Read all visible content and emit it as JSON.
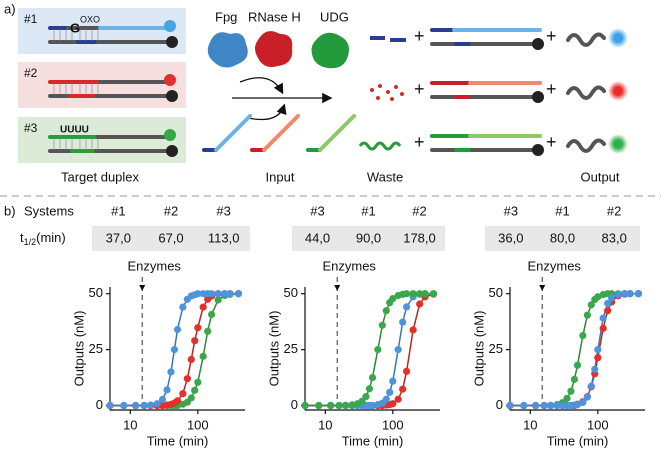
{
  "panel_a": {
    "label": "a)",
    "systems": [
      "#1",
      "#2",
      "#3"
    ],
    "lesion_base": "G",
    "lesion_tag": "OXO",
    "uracils": "UUUU",
    "enzymes": [
      "Fpg",
      "RNase H",
      "UDG"
    ],
    "captions": {
      "target": "Target duplex",
      "input": "Input",
      "waste": "Waste",
      "output": "Output"
    },
    "plus": "+"
  },
  "panel_b": {
    "label": "b)",
    "systems_label": "Systems",
    "t_half_label": {
      "main": "t",
      "sub": "1/2",
      "unit": "(min)"
    },
    "tables": [
      {
        "systems": [
          "#1",
          "#2",
          "#3"
        ],
        "t_half": [
          "37,0",
          "67,0",
          "113,0"
        ]
      },
      {
        "systems": [
          "#3",
          "#1",
          "#2"
        ],
        "t_half": [
          "44,0",
          "90,0",
          "178,0"
        ]
      },
      {
        "systems": [
          "#3",
          "#1",
          "#2"
        ],
        "t_half": [
          "36,0",
          "80,0",
          "83,0"
        ]
      }
    ]
  },
  "chart_data": [
    {
      "type": "scatter-line",
      "xlabel": "Time (min)",
      "ylabel": "Outputs (nM)",
      "xscale": "log",
      "xlim": [
        5,
        500
      ],
      "ylim": [
        -2,
        53
      ],
      "xticks": [
        10,
        100
      ],
      "yticks": [
        0,
        25,
        50
      ],
      "annotation": {
        "text": "Enzymes",
        "x": 15
      },
      "x": [
        5,
        8,
        12,
        16,
        20,
        25,
        30,
        35,
        40,
        45,
        50,
        60,
        70,
        80,
        90,
        100,
        120,
        140,
        160,
        200,
        250,
        300,
        400
      ],
      "series": [
        {
          "color": "#3aa84a",
          "values": [
            0,
            0,
            0,
            0,
            0,
            0,
            0,
            0,
            0,
            0,
            0,
            0.6,
            1.5,
            3.4,
            6.8,
            10.4,
            22,
            33.2,
            40.7,
            47.2,
            49.2,
            49.7,
            50
          ]
        },
        {
          "color": "#e2302b",
          "values": [
            0,
            0,
            0,
            0,
            0,
            0,
            0,
            0.2,
            0.5,
            1.1,
            2.1,
            5.3,
            12,
            20.6,
            29,
            34.8,
            44,
            47.5,
            49,
            50,
            50,
            50,
            50
          ]
        },
        {
          "color": "#4d94dc",
          "values": [
            0,
            0,
            0,
            0,
            0.2,
            0.8,
            2.7,
            7,
            15,
            25,
            34,
            44,
            47.5,
            49,
            49.5,
            50,
            50,
            50,
            50,
            50,
            50,
            50,
            50
          ]
        }
      ]
    },
    {
      "type": "scatter-line",
      "xlabel": "Time (min)",
      "ylabel": "Outputs (nM)",
      "xscale": "log",
      "xlim": [
        5,
        500
      ],
      "ylim": [
        -2,
        53
      ],
      "xticks": [
        10,
        100
      ],
      "yticks": [
        0,
        25,
        50
      ],
      "annotation": {
        "text": "Enzymes",
        "x": 15
      },
      "x": [
        5,
        8,
        12,
        16,
        20,
        25,
        30,
        35,
        40,
        45,
        50,
        60,
        70,
        80,
        90,
        100,
        120,
        140,
        160,
        200,
        250,
        300,
        400
      ],
      "series": [
        {
          "color": "#e2302b",
          "values": [
            0,
            0,
            0,
            0,
            0,
            0,
            0,
            0,
            0,
            0,
            0,
            0,
            0,
            0.2,
            0.4,
            0.8,
            2.8,
            7.3,
            15.3,
            33.8,
            45.4,
            48.6,
            49.8
          ]
        },
        {
          "color": "#4d94dc",
          "values": [
            0,
            0,
            0,
            0,
            0,
            0,
            0,
            0,
            0,
            0,
            0,
            0.4,
            1.1,
            2.8,
            5.9,
            10.9,
            25,
            37.3,
            44.1,
            48.6,
            49.8,
            50,
            50
          ]
        },
        {
          "color": "#3aa84a",
          "values": [
            0,
            0,
            0,
            0,
            0.1,
            0.3,
            0.8,
            1.9,
            4,
            7.5,
            12.5,
            25,
            35.9,
            42.4,
            46,
            47.8,
            49.2,
            49.7,
            50,
            50,
            50,
            50,
            50
          ]
        }
      ]
    },
    {
      "type": "scatter-line",
      "xlabel": "Time (min)",
      "ylabel": "Outputs (nM)",
      "xscale": "log",
      "xlim": [
        5,
        500
      ],
      "ylim": [
        -2,
        53
      ],
      "xticks": [
        10,
        100
      ],
      "yticks": [
        0,
        25,
        50
      ],
      "annotation": {
        "text": "Enzymes",
        "x": 15
      },
      "x": [
        5,
        8,
        12,
        16,
        20,
        25,
        30,
        35,
        40,
        45,
        50,
        60,
        70,
        80,
        90,
        100,
        120,
        140,
        160,
        200,
        250,
        300,
        400
      ],
      "series": [
        {
          "color": "#3aa84a",
          "values": [
            0,
            0,
            0,
            0,
            0.1,
            0.4,
            1.3,
            3.2,
            6.4,
            11.7,
            18,
            31.3,
            40.4,
            45,
            47.4,
            48.6,
            49.6,
            50,
            50,
            50,
            50,
            50,
            50
          ]
        },
        {
          "color": "#e2302b",
          "values": [
            0,
            0,
            0,
            0,
            0,
            0,
            0,
            0,
            0,
            0,
            0.6,
            1.7,
            4,
            8.4,
            14.2,
            21.4,
            34.5,
            42.4,
            46.3,
            49.1,
            49.8,
            50,
            50
          ]
        },
        {
          "color": "#4d94dc",
          "values": [
            0,
            0,
            0,
            0,
            0,
            0,
            0,
            0,
            0,
            0.2,
            0.4,
            1.4,
            3.8,
            8.7,
            16.2,
            25,
            39.1,
            45.7,
            48.2,
            49.6,
            50,
            50,
            50
          ]
        }
      ]
    }
  ]
}
